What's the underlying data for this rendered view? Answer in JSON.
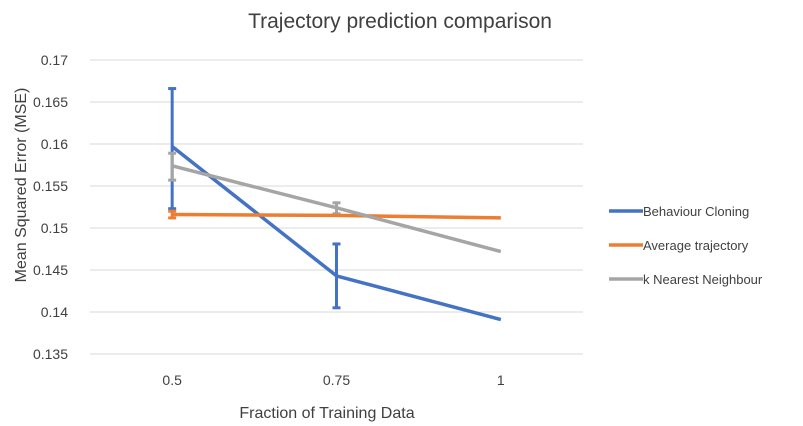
{
  "chart_data": {
    "type": "line",
    "title": "Trajectory prediction comparison",
    "xlabel": "Fraction of Training Data",
    "ylabel": "Mean Squared Error (MSE)",
    "categories": [
      "0.5",
      "0.75",
      "1"
    ],
    "ylim": [
      0.135,
      0.17
    ],
    "yticks": [
      "0.135",
      "0.14",
      "0.145",
      "0.15",
      "0.155",
      "0.16",
      "0.165",
      "0.17"
    ],
    "grid": true,
    "legend_position": "right",
    "series": [
      {
        "name": "Behaviour Cloning",
        "color": "#4472C4",
        "values": [
          0.1597,
          0.1443,
          0.1391
        ],
        "error_low": [
          0.1523,
          0.1405,
          null
        ],
        "error_high": [
          0.1666,
          0.1481,
          null
        ]
      },
      {
        "name": "Average trajectory",
        "color": "#ED7D31",
        "values": [
          0.1516,
          0.1515,
          0.1512
        ],
        "error_low": [
          0.1512,
          null,
          null
        ],
        "error_high": [
          0.152,
          null,
          null
        ]
      },
      {
        "name": "k Nearest Neighbour",
        "color": "#A5A5A5",
        "values": [
          0.1574,
          0.1524,
          0.1472
        ],
        "error_low": [
          0.1557,
          0.1517,
          null
        ],
        "error_high": [
          0.1589,
          0.153,
          null
        ]
      }
    ]
  }
}
